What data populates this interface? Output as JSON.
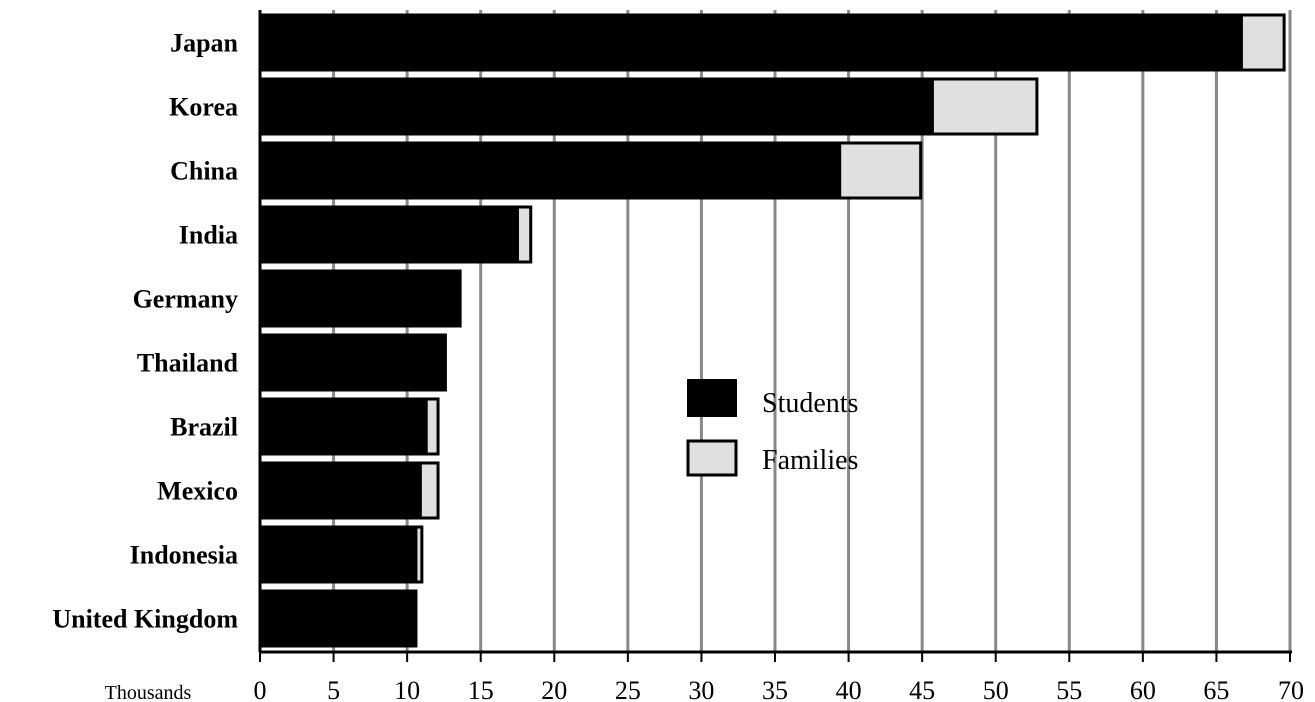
{
  "chart_data": {
    "type": "bar",
    "orientation": "horizontal",
    "stacked": true,
    "categories": [
      "Japan",
      "Korea",
      "China",
      "India",
      "Germany",
      "Thailand",
      "Brazil",
      "Mexico",
      "Indonesia",
      "United Kingdom"
    ],
    "series": [
      {
        "name": "Students",
        "color": "#000000",
        "values": [
          66.8,
          45.8,
          39.5,
          17.6,
          13.6,
          12.6,
          11.4,
          11.0,
          10.7,
          10.6
        ]
      },
      {
        "name": "Families",
        "color": "#e0e0e0",
        "values": [
          2.8,
          7.0,
          5.4,
          0.8,
          0.0,
          0.0,
          0.7,
          1.1,
          0.3,
          0.0
        ]
      }
    ],
    "xlabel": "Thousands",
    "xlim": [
      0,
      70
    ],
    "xticks": [
      "0",
      "5",
      "10",
      "15",
      "20",
      "25",
      "30",
      "35",
      "40",
      "45",
      "50",
      "55",
      "60",
      "65",
      "70"
    ],
    "grid": "vertical",
    "grid_color": "#888888",
    "legend_position": "center-right"
  }
}
